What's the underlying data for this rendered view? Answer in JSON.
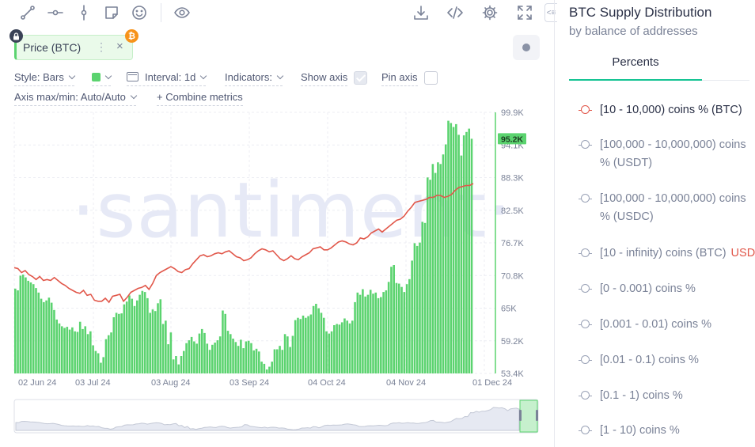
{
  "toolbar": {
    "tools": [
      "trend-line-icon",
      "horizontal-ray-icon",
      "vertical-line-icon",
      "note-icon",
      "emoji-icon"
    ],
    "actions": [
      "eye-icon",
      "download-icon",
      "embed-code-icon",
      "settings-gear-icon",
      "fullscreen-icon"
    ],
    "collapse_label": "<≡"
  },
  "metric": {
    "label": "Price (BTC)",
    "menu": "⋮",
    "close": "×",
    "lock_icon": "lock-icon",
    "asset_badge": "₿",
    "color": "#5bd36f"
  },
  "settings": {
    "style": "Style: Bars",
    "interval": "Interval: 1d",
    "indicators": "Indicators:",
    "show_axis": "Show axis",
    "show_axis_checked": true,
    "pin_axis": "Pin axis",
    "pin_axis_checked": false,
    "axis_maxmin": "Axis max/min: Auto/Auto",
    "combine": "+ Combine metrics"
  },
  "chart_data": {
    "type": "bar",
    "watermark": "·santiment·",
    "x_ticks": [
      "02 Jun 24",
      "03 Jul 24",
      "03 Aug 24",
      "03 Sep 24",
      "04 Oct 24",
      "04 Nov 24",
      "01 Dec 24"
    ],
    "y_ticks": [
      "99.9K",
      "94.1K",
      "88.3K",
      "82.5K",
      "76.7K",
      "70.8K",
      "65K",
      "59.2K",
      "53.4K"
    ],
    "ylim": [
      53400,
      99900
    ],
    "current_label": "95.2K",
    "current_value": 95200,
    "series": [
      {
        "name": "Price (BTC)",
        "type": "bar",
        "color": "#5bd36f",
        "values": [
          68500,
          68200,
          70800,
          71000,
          70500,
          69900,
          69600,
          69300,
          68600,
          67800,
          66700,
          66100,
          66400,
          66900,
          66000,
          64700,
          63000,
          62300,
          61800,
          61500,
          61700,
          61200,
          61600,
          60900,
          60800,
          62600,
          61300,
          61800,
          60400,
          60900,
          58400,
          57400,
          57000,
          55300,
          56300,
          59500,
          60200,
          60700,
          63400,
          64200,
          64000,
          64100,
          65700,
          66200,
          67300,
          66700,
          65400,
          66400,
          67400,
          68100,
          67900,
          66800,
          64200,
          64800,
          64500,
          65900,
          66600,
          62200,
          62800,
          58600,
          60700,
          55900,
          56500,
          55000,
          56500,
          57400,
          58800,
          59300,
          59900,
          59100,
          58700,
          60500,
          61300,
          60600,
          58700,
          57600,
          58500,
          58900,
          59300,
          60000,
          64600,
          64000,
          61000,
          60400,
          59600,
          59000,
          58300,
          59400,
          57900,
          59100,
          59200,
          58800,
          57500,
          57800,
          57300,
          55500,
          55100,
          54100,
          54600,
          55500,
          57700,
          57700,
          58300,
          57600,
          60400,
          60000,
          58100,
          60100,
          62900,
          63300,
          63100,
          63700,
          63300,
          63600,
          63900,
          65400,
          65800,
          65000,
          64200,
          63300,
          60900,
          60500,
          60900,
          62000,
          62200,
          62100,
          62500,
          63200,
          62800,
          62300,
          62800,
          66100,
          67800,
          67400,
          68400,
          67100,
          67400,
          68300,
          67600,
          67800,
          66800,
          67000,
          67900,
          68200,
          69700,
          72400,
          72700,
          69500,
          69400,
          68800,
          67900,
          69300,
          70200,
          73500,
          76600,
          76100,
          76700,
          80400,
          80200,
          88300,
          87900,
          90700,
          89100,
          91000,
          90700,
          92400,
          94200,
          98400,
          98000,
          97300,
          97800,
          95900,
          92200,
          95800,
          96400,
          97000,
          95200
        ]
      },
      {
        "name": "[10 - 10,000) coins % (BTC)",
        "type": "line",
        "color": "#e1574a",
        "values": [
          43,
          42,
          38,
          40,
          36,
          34,
          31,
          34,
          30,
          31,
          30,
          33,
          30,
          27,
          25,
          22,
          20,
          18,
          17,
          20,
          15,
          16,
          10,
          9,
          9,
          12,
          8,
          14,
          15,
          16,
          9,
          13,
          18,
          20,
          22,
          23,
          25,
          21,
          27,
          35,
          38,
          40,
          42,
          44,
          42,
          39,
          38,
          41,
          42,
          47,
          51,
          55,
          56,
          54,
          55,
          57,
          58,
          57,
          59,
          60,
          57,
          54,
          53,
          50,
          51,
          53,
          57,
          60,
          62,
          61,
          59,
          60,
          56,
          52,
          50,
          52,
          55,
          52,
          51,
          54,
          56,
          58,
          62,
          63,
          64,
          61,
          61,
          63,
          66,
          69,
          70,
          69,
          67,
          66,
          68,
          73,
          72,
          74,
          78,
          80,
          82,
          79,
          82,
          85,
          88,
          91,
          92,
          95,
          100,
          104,
          109,
          110,
          111,
          112,
          114,
          114,
          116,
          116,
          114,
          115,
          117,
          121,
          124,
          125,
          126,
          126,
          128
        ]
      }
    ]
  },
  "panel": {
    "title": "BTC Supply Distribution",
    "subtitle": "by balance of addresses",
    "tab": "Percents",
    "items": [
      {
        "line1": "[10 - 10,000) coins % (BTC)",
        "line2": "",
        "active": true,
        "badge": ""
      },
      {
        "line1": "[100,000 - 10,000,000) coins",
        "line2": "% (USDT)",
        "active": false,
        "badge": ""
      },
      {
        "line1": "[100,000 - 10,000,000) coins",
        "line2": "% (USDC)",
        "active": false,
        "badge": ""
      },
      {
        "line1": "[10 - infinity) coins (BTC)",
        "line2": "",
        "active": false,
        "badge": "USD"
      },
      {
        "line1": "[0 - 0.001) coins %",
        "line2": "",
        "active": false,
        "badge": ""
      },
      {
        "line1": "[0.001 - 0.01) coins %",
        "line2": "",
        "active": false,
        "badge": ""
      },
      {
        "line1": "[0.01 - 0.1) coins %",
        "line2": "",
        "active": false,
        "badge": ""
      },
      {
        "line1": "[0.1 - 1) coins %",
        "line2": "",
        "active": false,
        "badge": ""
      },
      {
        "line1": "[1 - 10) coins %",
        "line2": "",
        "active": false,
        "badge": ""
      }
    ]
  }
}
